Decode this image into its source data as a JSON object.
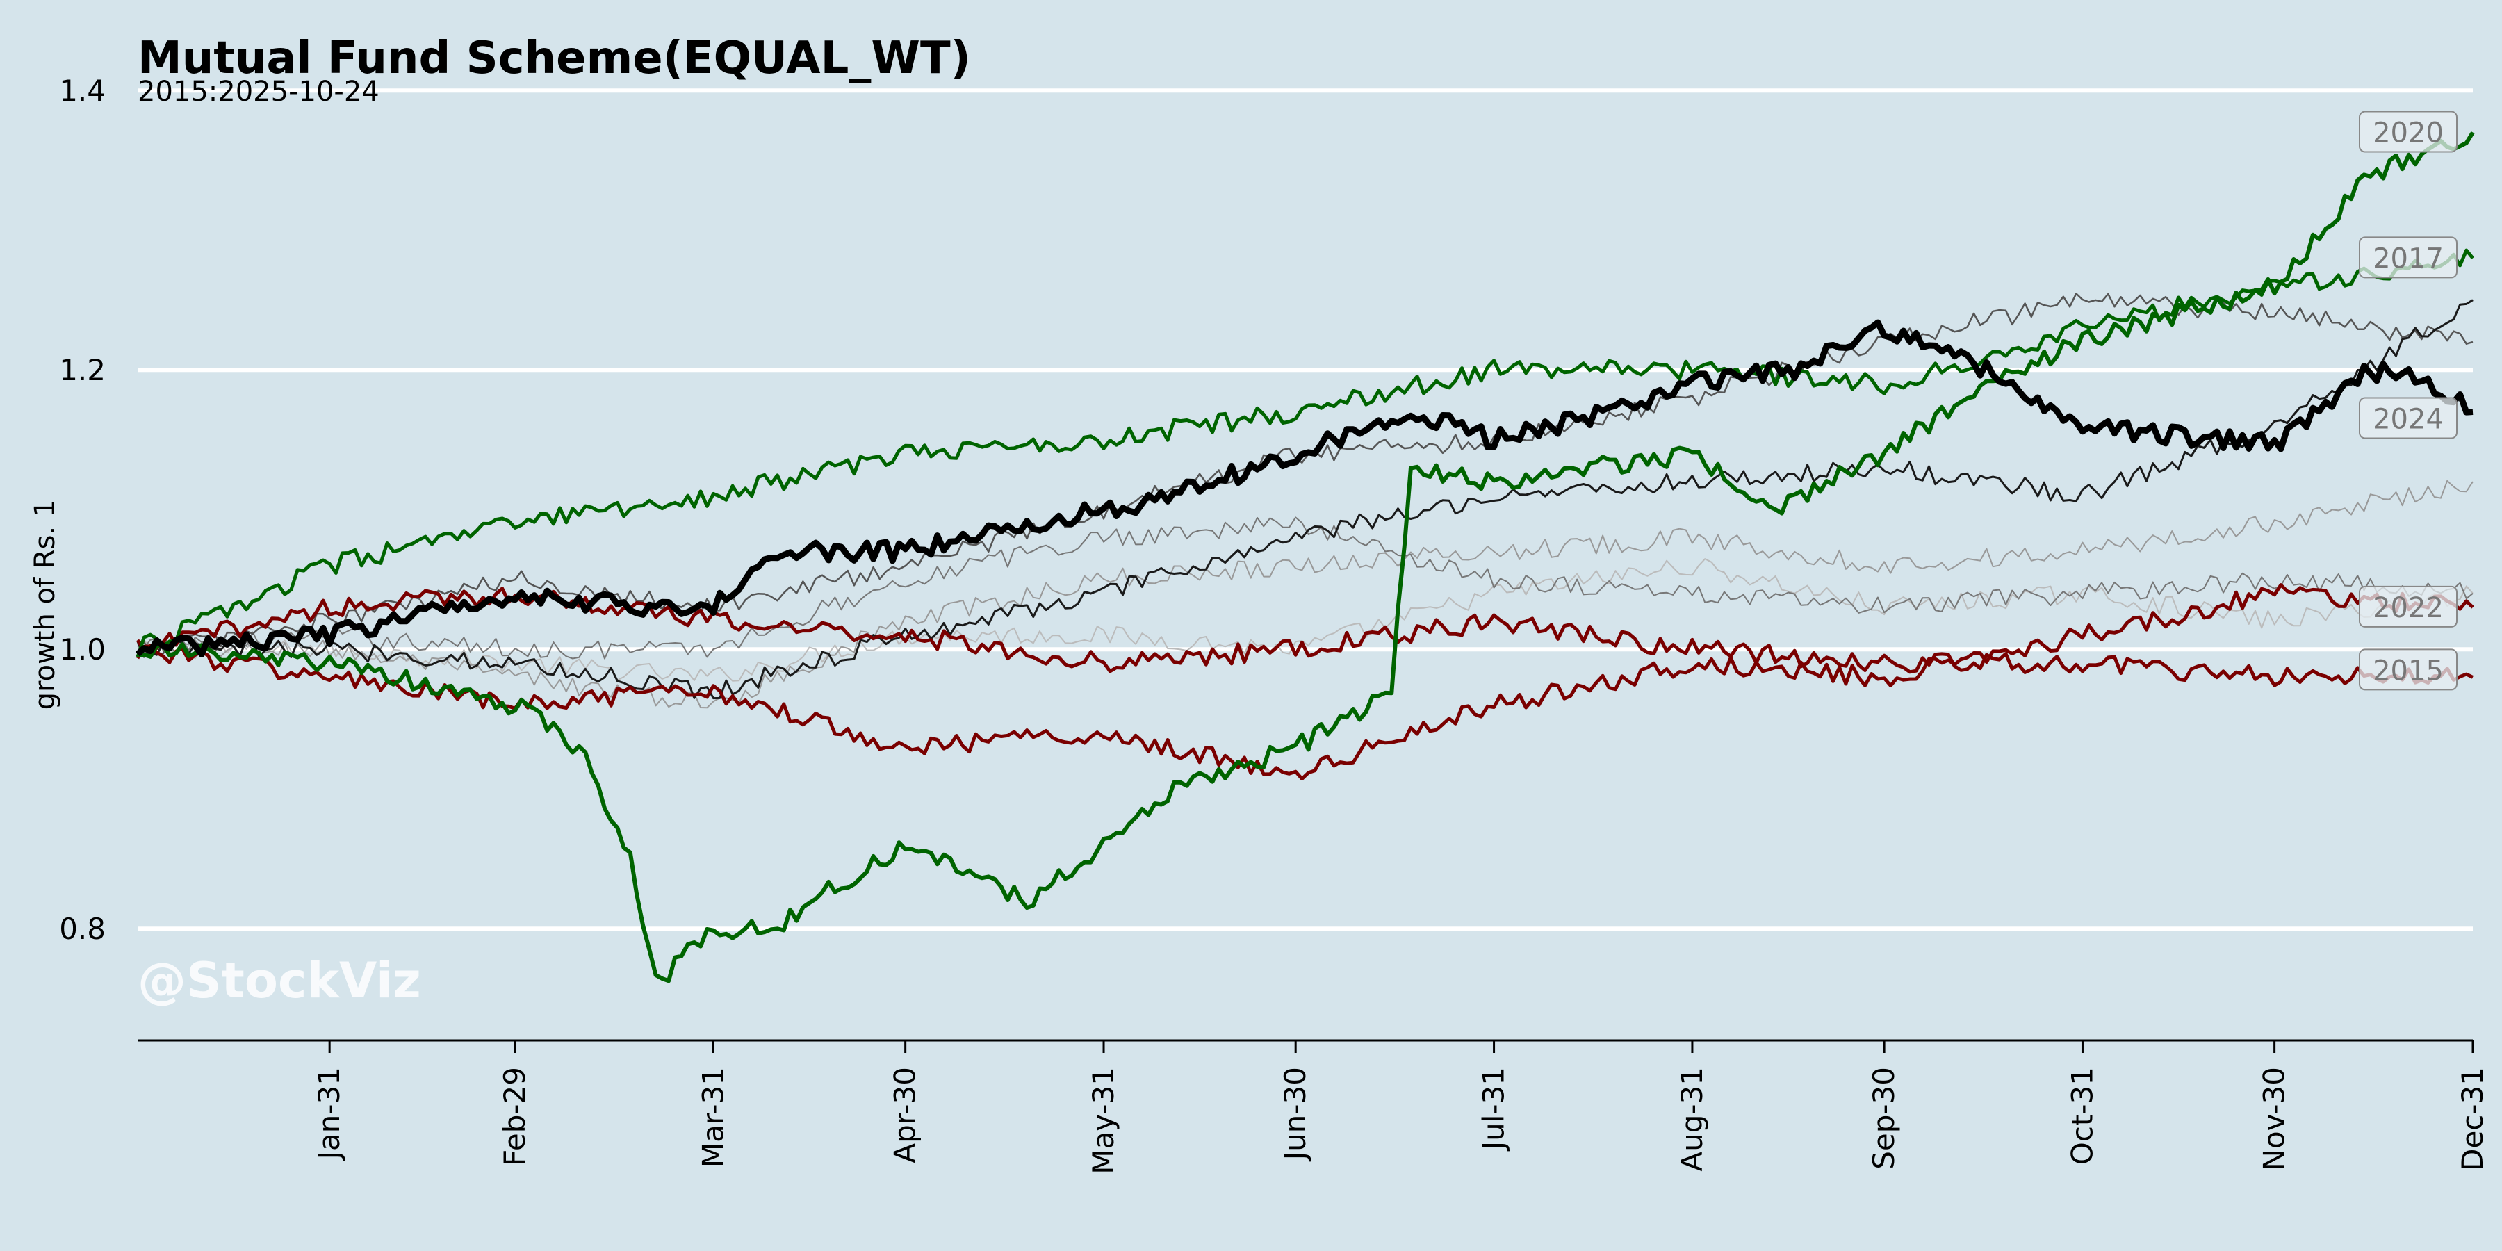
{
  "chart_data": {
    "type": "line",
    "title": "Mutual Fund Scheme(EQUAL_WT)",
    "subtitle": "2015:2025-10-24",
    "ylabel": "growth of Rs. 1",
    "watermark": "@StockViz",
    "ylim": [
      0.72,
      1.42
    ],
    "xlim": [
      1,
      366
    ],
    "yticks": [
      {
        "v": 0.8,
        "label": "0.8"
      },
      {
        "v": 1.0,
        "label": "1.0"
      },
      {
        "v": 1.2,
        "label": "1.2"
      },
      {
        "v": 1.4,
        "label": "1.4"
      }
    ],
    "xticks": [
      {
        "d": 31,
        "label": "Jan-31"
      },
      {
        "d": 60,
        "label": "Feb-29"
      },
      {
        "d": 91,
        "label": "Mar-31"
      },
      {
        "d": 121,
        "label": "Apr-30"
      },
      {
        "d": 152,
        "label": "May-31"
      },
      {
        "d": 182,
        "label": "Jun-30"
      },
      {
        "d": 213,
        "label": "Jul-31"
      },
      {
        "d": 244,
        "label": "Aug-31"
      },
      {
        "d": 274,
        "label": "Sep-30"
      },
      {
        "d": 305,
        "label": "Oct-31"
      },
      {
        "d": 335,
        "label": "Nov-30"
      },
      {
        "d": 366,
        "label": "Dec-31"
      }
    ],
    "grid": "horizontal",
    "series": [
      {
        "name": "",
        "color": "#bbbbbb",
        "width": 2,
        "x": [
          1,
          31,
          60,
          91,
          121,
          152,
          182,
          213,
          244,
          274,
          305,
          335,
          366
        ],
        "y": [
          1.0,
          1.0,
          0.99,
          0.98,
          1.01,
          1.01,
          1.0,
          1.04,
          1.06,
          1.03,
          1.04,
          1.02,
          1.04
        ]
      },
      {
        "name": "",
        "color": "#999999",
        "width": 2,
        "x": [
          1,
          31,
          60,
          91,
          121,
          152,
          182,
          213,
          244,
          274,
          305,
          335,
          366
        ],
        "y": [
          1.0,
          1.0,
          0.98,
          0.96,
          1.02,
          1.05,
          1.06,
          1.07,
          1.08,
          1.06,
          1.07,
          1.09,
          1.12
        ]
      },
      {
        "name": "",
        "color": "#777777",
        "width": 2,
        "x": [
          1,
          31,
          60,
          91,
          121,
          152,
          182,
          213,
          244,
          274,
          305,
          335,
          366
        ],
        "y": [
          1.0,
          1.01,
          1.0,
          1.0,
          1.05,
          1.08,
          1.09,
          1.05,
          1.04,
          1.03,
          1.04,
          1.05,
          1.04
        ]
      },
      {
        "name": "",
        "color": "#555555",
        "width": 2.5,
        "x": [
          1,
          31,
          60,
          91,
          121,
          152,
          182,
          213,
          244,
          274,
          305,
          335,
          366
        ],
        "y": [
          1.0,
          1.02,
          1.05,
          1.03,
          1.06,
          1.1,
          1.14,
          1.15,
          1.18,
          1.22,
          1.25,
          1.24,
          1.22
        ]
      },
      {
        "name": "",
        "color": "#1a1a1a",
        "width": 3,
        "x": [
          1,
          31,
          60,
          91,
          121,
          152,
          182,
          213,
          244,
          274,
          305,
          335,
          366
        ],
        "y": [
          1.0,
          1.0,
          0.99,
          0.97,
          1.01,
          1.04,
          1.08,
          1.11,
          1.12,
          1.13,
          1.11,
          1.16,
          1.25
        ]
      },
      {
        "name": "",
        "color": "#7a0000",
        "width": 5,
        "x": [
          1,
          31,
          60,
          91,
          121,
          152,
          182,
          213,
          244,
          274,
          305,
          335,
          366
        ],
        "y": [
          1.0,
          1.03,
          1.04,
          1.02,
          1.01,
          0.99,
          1.0,
          1.02,
          1.0,
          0.99,
          0.99,
          0.98,
          0.98
        ]
      },
      {
        "name": "",
        "color": "#7a0000",
        "width": 5,
        "x": [
          1,
          31,
          60,
          91,
          121,
          152,
          182,
          213,
          244,
          274,
          305,
          335,
          366
        ],
        "y": [
          1.0,
          0.98,
          0.96,
          0.97,
          0.93,
          0.94,
          0.91,
          0.96,
          0.99,
          0.98,
          1.01,
          1.04,
          1.03
        ]
      },
      {
        "name": "",
        "color": "#006400",
        "width": 5,
        "x": [
          1,
          31,
          60,
          91,
          121,
          152,
          182,
          213,
          244,
          274,
          305,
          335,
          366
        ],
        "y": [
          1.0,
          1.06,
          1.09,
          1.11,
          1.14,
          1.15,
          1.17,
          1.2,
          1.2,
          1.19,
          1.23,
          1.26,
          1.28
        ]
      },
      {
        "name": "",
        "color": "#006400",
        "width": 6,
        "x": [
          1,
          31,
          60,
          70,
          78,
          82,
          91,
          101,
          110,
          121,
          131,
          140,
          152,
          163,
          182,
          190,
          197,
          200,
          213,
          244,
          257,
          274,
          290,
          305,
          335,
          350,
          366
        ],
        "y": [
          1.0,
          0.99,
          0.96,
          0.93,
          0.85,
          0.76,
          0.8,
          0.8,
          0.83,
          0.86,
          0.84,
          0.82,
          0.86,
          0.9,
          0.93,
          0.95,
          0.97,
          1.13,
          1.12,
          1.14,
          1.1,
          1.14,
          1.19,
          1.22,
          1.26,
          1.34,
          1.37
        ]
      },
      {
        "name": "",
        "color": "#000000",
        "width": 9,
        "x": [
          1,
          31,
          60,
          81,
          91,
          101,
          121,
          152,
          163,
          182,
          200,
          213,
          223,
          244,
          260,
          274,
          290,
          305,
          326,
          336,
          350,
          360,
          366
        ],
        "y": [
          1.0,
          1.01,
          1.04,
          1.03,
          1.03,
          1.07,
          1.07,
          1.1,
          1.11,
          1.14,
          1.17,
          1.15,
          1.16,
          1.19,
          1.2,
          1.23,
          1.2,
          1.16,
          1.15,
          1.15,
          1.2,
          1.19,
          1.17
        ]
      }
    ],
    "year_labels": [
      {
        "text": "2020",
        "y": 1.37
      },
      {
        "text": "2017",
        "y": 1.28
      },
      {
        "text": "2024",
        "y": 1.165
      },
      {
        "text": "2022",
        "y": 1.03
      },
      {
        "text": "2015",
        "y": 0.985
      }
    ]
  }
}
